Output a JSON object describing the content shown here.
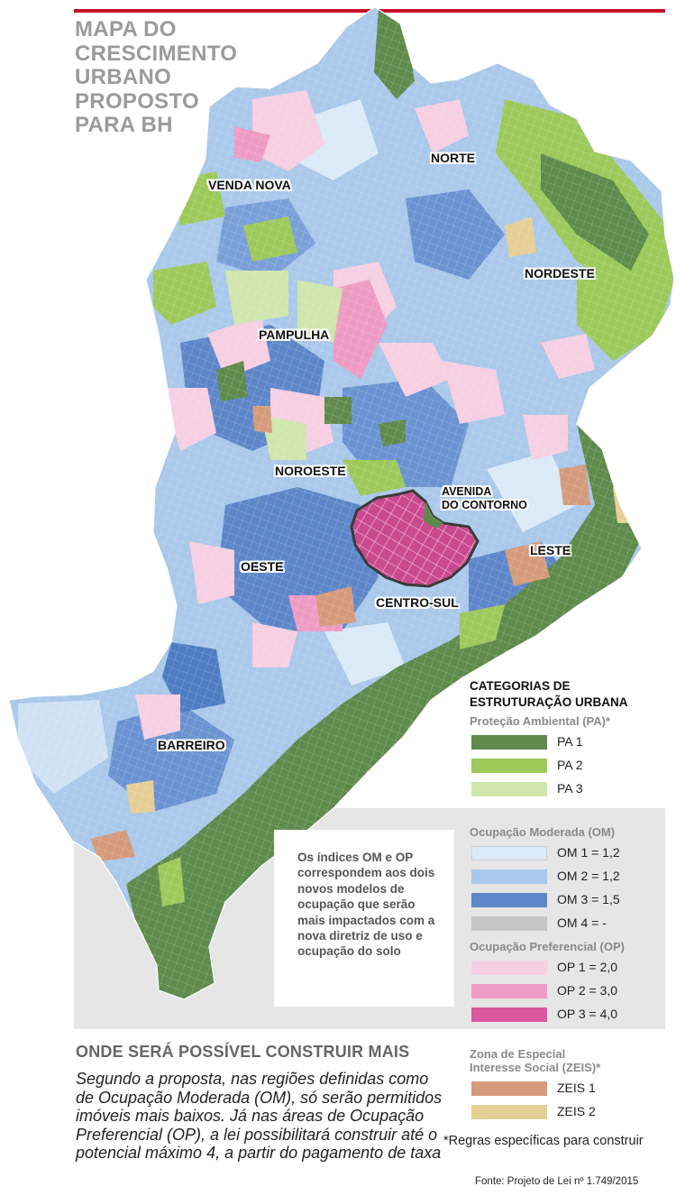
{
  "title_lines": [
    "MAPA DO",
    "CRESCIMENTO",
    "URBANO",
    "PROPOSTO",
    "PARA BH"
  ],
  "regions": {
    "norte": "NORTE",
    "venda_nova": "VENDA NOVA",
    "nordeste": "NORDESTE",
    "pampulha": "PAMPULHA",
    "noroeste": "NOROESTE",
    "leste": "LESTE",
    "oeste": "OESTE",
    "centro_sul": "CENTRO-SUL",
    "barreiro": "BARREIRO",
    "avenida_1": "AVENIDA",
    "avenida_2": "DO CONTORNO"
  },
  "legend": {
    "heading_1": "CATEGORIAS DE",
    "heading_2": "ESTRUTURAÇÃO URBANA",
    "pa": {
      "title": "Proteção Ambiental (PA)*",
      "items": [
        {
          "label": "PA 1",
          "color": "#5e8a4b"
        },
        {
          "label": "PA 2",
          "color": "#9cc95a"
        },
        {
          "label": "PA 3",
          "color": "#d0e6ac"
        }
      ]
    },
    "om": {
      "title": "Ocupação Moderada (OM)",
      "items": [
        {
          "label": "OM 1 = 1,2",
          "color": "#daeaf7"
        },
        {
          "label": "OM 2 = 1,2",
          "color": "#a9c8ea"
        },
        {
          "label": "OM 3 = 1,5",
          "color": "#5e87c9"
        },
        {
          "label": "OM 4 =  -",
          "color": "#c6c6c6"
        }
      ]
    },
    "op": {
      "title": "Ocupação Preferencial (OP)",
      "items": [
        {
          "label": "OP 1  = 2,0",
          "color": "#f6cfe2"
        },
        {
          "label": "OP 2  = 3,0",
          "color": "#ee9cc4"
        },
        {
          "label": "OP 3  = 4,0",
          "color": "#d9589e"
        }
      ]
    },
    "zeis": {
      "title_1": "Zona de Especial",
      "title_2": "Interesse Social (ZEIS)*",
      "items": [
        {
          "label": "ZEIS 1",
          "color": "#d49b7c"
        },
        {
          "label": "ZEIS 2",
          "color": "#e6cf96"
        }
      ]
    }
  },
  "note": "Os índices OM e OP correspondem aos dois novos modelos de ocupação que serão mais impactados com a nova diretriz de uso e ocupação do solo",
  "subheading": "ONDE SERÁ POSSÍVEL CONSTRUIR MAIS",
  "body_text": "Segundo a proposta, nas regiões definidas como de Ocupação Moderada (OM), só serão permitidos imóveis mais baixos. Já nas áreas de Ocupação Preferencial (OP), a lei possibilitará construir até o potencial máximo 4, a partir do pagamento de taxa",
  "footnote": "*Regras específicas para construir",
  "source": "Fonte: Projeto de Lei nº 1.749/2015"
}
